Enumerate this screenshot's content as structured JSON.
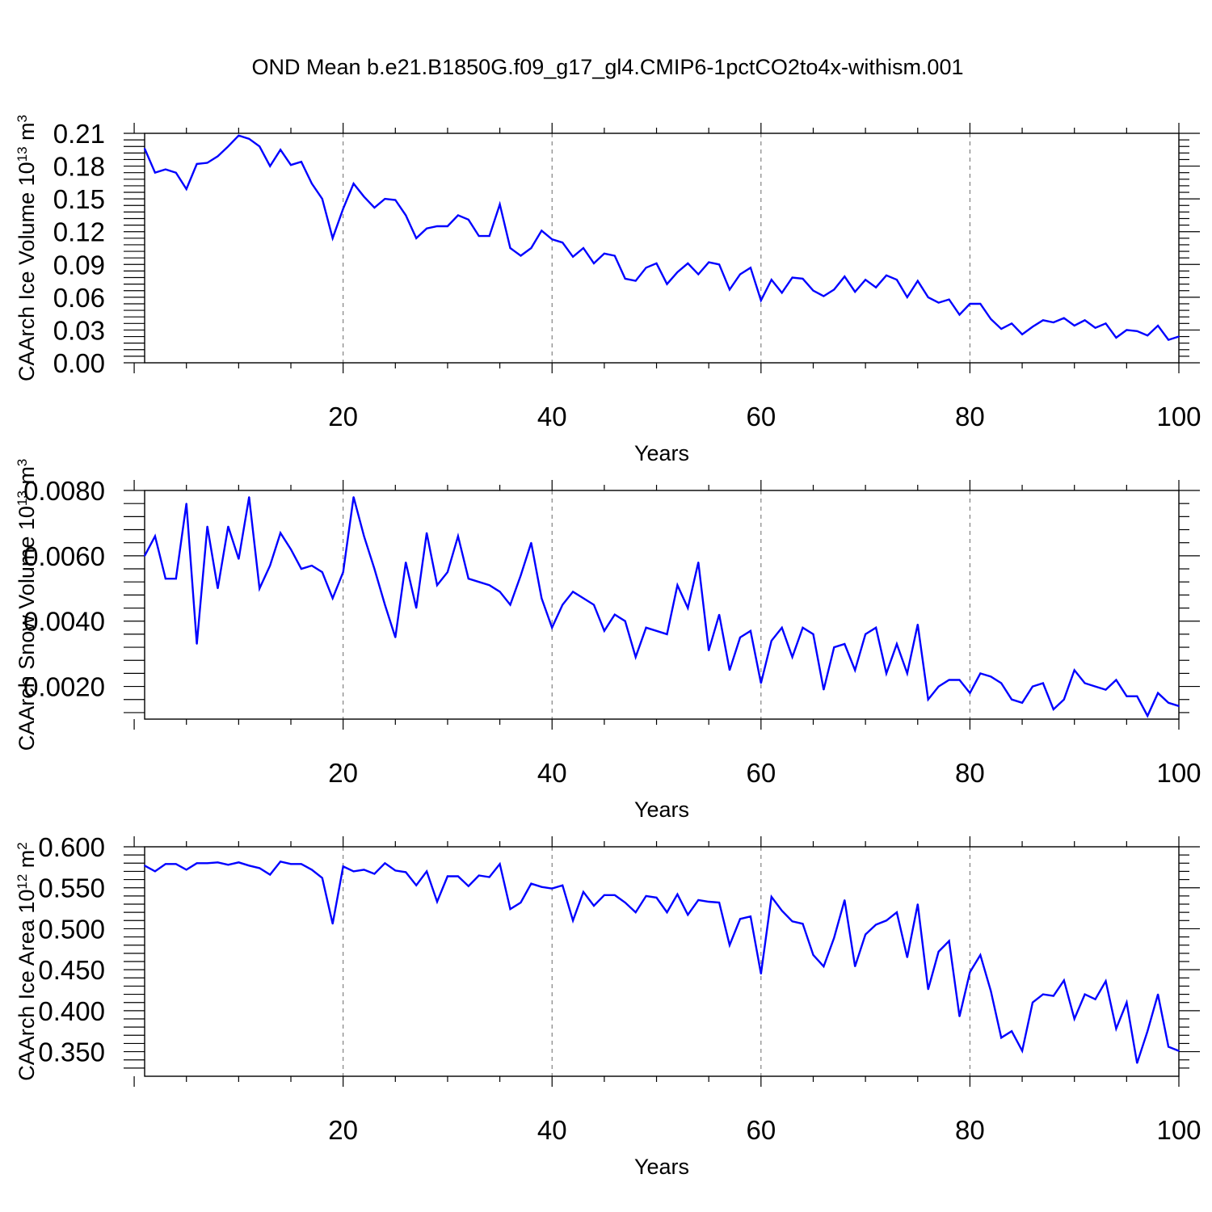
{
  "figure": {
    "title": "OND Mean b.e21.B1850G.f09_g17_gl4.CMIP6-1pctCO2to4x-withism.001"
  },
  "colors": {
    "line": "#0000ff",
    "frame": "#000000",
    "grid": "#777777"
  },
  "chart_data": [
    {
      "type": "line",
      "title": "",
      "xlabel": "Years",
      "ylabel": "CAArch Ice Volume 10",
      "ylabel_exp": "13",
      "ylabel_unit": " m",
      "ylabel_unit_exp": "3",
      "xlim": [
        1,
        100
      ],
      "ylim": [
        0.0,
        0.21
      ],
      "x_ticks": [
        20,
        40,
        60,
        80,
        100
      ],
      "x_tick_labels": [
        "20",
        "40",
        "60",
        "80",
        "100"
      ],
      "y_ticks": [
        0.0,
        0.03,
        0.06,
        0.09,
        0.12,
        0.15,
        0.18,
        0.21
      ],
      "y_tick_labels": [
        "0.00",
        "0.03",
        "0.06",
        "0.09",
        "0.12",
        "0.15",
        "0.18",
        "0.21"
      ],
      "grid": "vertical dashed at major x ticks",
      "series": [
        {
          "values": [
            0.196,
            0.174,
            0.177,
            0.174,
            0.159,
            0.182,
            0.183,
            0.189,
            0.198,
            0.208,
            0.205,
            0.198,
            0.18,
            0.195,
            0.181,
            0.184,
            0.164,
            0.15,
            0.114,
            0.141,
            0.164,
            0.152,
            0.142,
            0.15,
            0.149,
            0.135,
            0.114,
            0.123,
            0.125,
            0.125,
            0.135,
            0.131,
            0.116,
            0.116,
            0.145,
            0.105,
            0.098,
            0.105,
            0.121,
            0.113,
            0.11,
            0.097,
            0.105,
            0.091,
            0.1,
            0.098,
            0.077,
            0.075,
            0.087,
            0.091,
            0.072,
            0.083,
            0.091,
            0.081,
            0.092,
            0.09,
            0.067,
            0.081,
            0.087,
            0.057,
            0.076,
            0.064,
            0.078,
            0.077,
            0.066,
            0.061,
            0.067,
            0.079,
            0.065,
            0.076,
            0.069,
            0.08,
            0.076,
            0.06,
            0.075,
            0.06,
            0.055,
            0.058,
            0.044,
            0.054,
            0.054,
            0.04,
            0.031,
            0.036,
            0.026,
            0.033,
            0.039,
            0.037,
            0.041,
            0.034,
            0.039,
            0.032,
            0.036,
            0.023,
            0.03,
            0.029,
            0.025,
            0.034,
            0.021,
            0.024
          ]
        }
      ]
    },
    {
      "type": "line",
      "title": "",
      "xlabel": "Years",
      "ylabel": "CAArch Snow Volume 10",
      "ylabel_exp": "13",
      "ylabel_unit": " m",
      "ylabel_unit_exp": "3",
      "xlim": [
        1,
        100
      ],
      "ylim": [
        0.001,
        0.008
      ],
      "x_ticks": [
        20,
        40,
        60,
        80,
        100
      ],
      "x_tick_labels": [
        "20",
        "40",
        "60",
        "80",
        "100"
      ],
      "y_ticks": [
        0.002,
        0.004,
        0.006,
        0.008
      ],
      "y_tick_labels": [
        "0.0020",
        "0.0040",
        "0.0060",
        "0.0080"
      ],
      "grid": "vertical dashed at major x ticks",
      "series": [
        {
          "values": [
            0.006,
            0.0066,
            0.0053,
            0.0053,
            0.0076,
            0.0033,
            0.0069,
            0.005,
            0.0069,
            0.0059,
            0.0078,
            0.005,
            0.0057,
            0.0067,
            0.0062,
            0.0056,
            0.0057,
            0.0055,
            0.0047,
            0.0055,
            0.0078,
            0.0066,
            0.0056,
            0.0045,
            0.0035,
            0.0058,
            0.0044,
            0.0067,
            0.0051,
            0.0055,
            0.0066,
            0.0053,
            0.0052,
            0.0051,
            0.0049,
            0.0045,
            0.0054,
            0.0064,
            0.0047,
            0.0038,
            0.0045,
            0.0049,
            0.0047,
            0.0045,
            0.0037,
            0.0042,
            0.004,
            0.0029,
            0.0038,
            0.0037,
            0.0036,
            0.0051,
            0.0044,
            0.0058,
            0.0031,
            0.0042,
            0.0025,
            0.0035,
            0.0037,
            0.0021,
            0.0034,
            0.0038,
            0.0029,
            0.0038,
            0.0036,
            0.0019,
            0.0032,
            0.0033,
            0.0025,
            0.0036,
            0.0038,
            0.0024,
            0.0033,
            0.0024,
            0.0039,
            0.0016,
            0.002,
            0.0022,
            0.0022,
            0.0018,
            0.0024,
            0.0023,
            0.0021,
            0.0016,
            0.0015,
            0.002,
            0.0021,
            0.0013,
            0.0016,
            0.0025,
            0.0021,
            0.002,
            0.0019,
            0.0022,
            0.0017,
            0.0017,
            0.0011,
            0.0018,
            0.0015,
            0.0014
          ]
        }
      ]
    },
    {
      "type": "line",
      "title": "",
      "xlabel": "Years",
      "ylabel": "CAArch Ice Area 10",
      "ylabel_exp": "12",
      "ylabel_unit": " m",
      "ylabel_unit_exp": "2",
      "xlim": [
        1,
        100
      ],
      "ylim": [
        0.32,
        0.6
      ],
      "x_ticks": [
        20,
        40,
        60,
        80,
        100
      ],
      "x_tick_labels": [
        "20",
        "40",
        "60",
        "80",
        "100"
      ],
      "y_ticks": [
        0.35,
        0.4,
        0.45,
        0.5,
        0.55,
        0.6
      ],
      "y_tick_labels": [
        "0.350",
        "0.400",
        "0.450",
        "0.500",
        "0.550",
        "0.600"
      ],
      "grid": "vertical dashed at major x ticks",
      "series": [
        {
          "values": [
            0.577,
            0.57,
            0.579,
            0.579,
            0.572,
            0.58,
            0.58,
            0.581,
            0.578,
            0.581,
            0.577,
            0.574,
            0.566,
            0.582,
            0.579,
            0.579,
            0.572,
            0.562,
            0.506,
            0.576,
            0.57,
            0.572,
            0.567,
            0.58,
            0.571,
            0.569,
            0.553,
            0.57,
            0.533,
            0.564,
            0.564,
            0.552,
            0.565,
            0.563,
            0.579,
            0.524,
            0.532,
            0.555,
            0.551,
            0.549,
            0.553,
            0.51,
            0.545,
            0.528,
            0.541,
            0.541,
            0.532,
            0.52,
            0.54,
            0.538,
            0.52,
            0.542,
            0.517,
            0.535,
            0.533,
            0.532,
            0.48,
            0.512,
            0.515,
            0.445,
            0.539,
            0.522,
            0.509,
            0.506,
            0.468,
            0.454,
            0.489,
            0.535,
            0.454,
            0.493,
            0.505,
            0.51,
            0.52,
            0.465,
            0.53,
            0.426,
            0.472,
            0.485,
            0.393,
            0.447,
            0.468,
            0.424,
            0.367,
            0.375,
            0.351,
            0.41,
            0.42,
            0.418,
            0.437,
            0.39,
            0.42,
            0.414,
            0.436,
            0.378,
            0.41,
            0.336,
            0.375,
            0.42,
            0.356,
            0.351
          ]
        }
      ]
    }
  ]
}
